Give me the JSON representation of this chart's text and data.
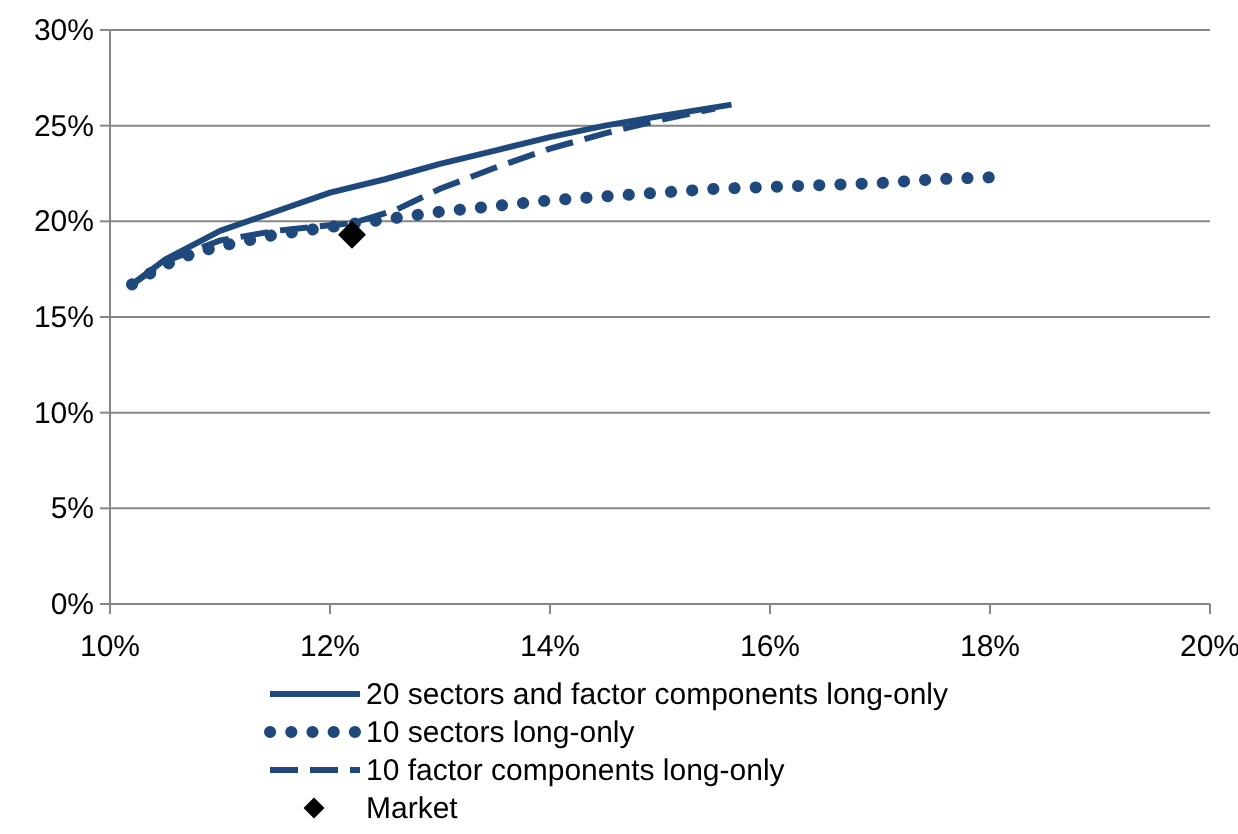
{
  "chart_data": {
    "type": "line",
    "xlim": [
      10,
      20
    ],
    "xticks": [
      {
        "value": 10,
        "label": "10%"
      },
      {
        "value": 12,
        "label": "12%"
      },
      {
        "value": 14,
        "label": "14%"
      },
      {
        "value": 16,
        "label": "16%"
      },
      {
        "value": 18,
        "label": "18%"
      },
      {
        "value": 20,
        "label": "20%"
      }
    ],
    "ylim": [
      0,
      30
    ],
    "yticks": [
      {
        "value": 0,
        "label": "0%"
      },
      {
        "value": 5,
        "label": "5%"
      },
      {
        "value": 10,
        "label": "10%"
      },
      {
        "value": 15,
        "label": "15%"
      },
      {
        "value": 20,
        "label": "20%"
      },
      {
        "value": 25,
        "label": "25%"
      },
      {
        "value": 30,
        "label": "30%"
      }
    ],
    "grid": "y",
    "legend": "bottom",
    "series": [
      {
        "name": "20 sectors and factor components long-only",
        "color": "#1f497d",
        "line_style": "solid",
        "marker": "none",
        "x": [
          10.2,
          10.5,
          11,
          11.5,
          12,
          12.5,
          13,
          13.5,
          14,
          14.5,
          15,
          15.65
        ],
        "values": [
          16.7,
          18,
          19.5,
          20.5,
          21.5,
          22.2,
          23,
          23.7,
          24.4,
          25,
          25.5,
          26.1
        ]
      },
      {
        "name": "10 sectors long-only",
        "color": "#1f497d",
        "line_style": "dotted",
        "marker": "none",
        "x": [
          10.2,
          10.4,
          10.6,
          10.8,
          11,
          11.5,
          12,
          12.5,
          13,
          13.5,
          14,
          14.5,
          15,
          15.5,
          16,
          16.5,
          17,
          17.5,
          18
        ],
        "values": [
          16.7,
          17.4,
          18,
          18.4,
          18.7,
          19.3,
          19.7,
          20.1,
          20.5,
          20.8,
          21.1,
          21.3,
          21.5,
          21.7,
          21.8,
          21.9,
          22,
          22.2,
          22.3
        ]
      },
      {
        "name": "10 factor components long-only",
        "color": "#1f497d",
        "line_style": "dashed",
        "marker": "none",
        "x": [
          10.2,
          10.5,
          11,
          11.5,
          12,
          12.2,
          12.6,
          13,
          13.5,
          14,
          14.5,
          15,
          15.5
        ],
        "values": [
          16.7,
          17.9,
          19,
          19.5,
          19.8,
          19.9,
          20.6,
          21.7,
          22.8,
          23.8,
          24.6,
          25.3,
          25.9
        ]
      },
      {
        "name": "Market",
        "type": "scatter",
        "color": "#000000",
        "marker": "diamond",
        "x": [
          12.2
        ],
        "values": [
          19.3
        ]
      }
    ]
  }
}
